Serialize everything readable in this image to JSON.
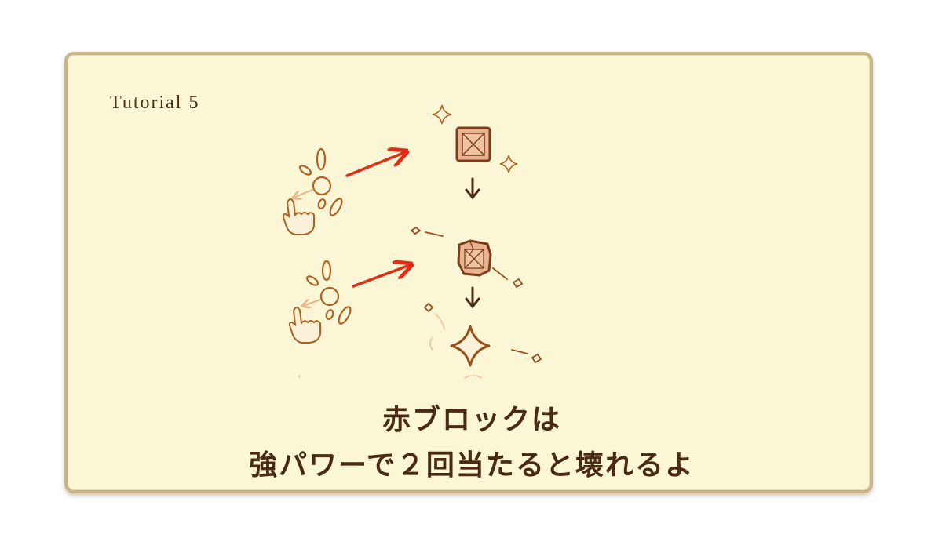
{
  "tutorial": {
    "label": "Tutorial 5",
    "caption_line1": "赤ブロックは",
    "caption_line2": "強パワーで２回当たると壊れるよ"
  },
  "colors": {
    "panel_bg": "#faf6d6",
    "panel_border": "#c9b48a",
    "ink": "#a0531e",
    "arrow": "#e02d14",
    "text": "#4a2b12"
  },
  "icons": [
    "flower-icon",
    "tap-hand-icon",
    "power-arrow-icon",
    "red-block-icon",
    "cracked-block-icon",
    "broken-block-icon",
    "sparkle-icon",
    "debris-icon",
    "down-arrow-icon"
  ]
}
